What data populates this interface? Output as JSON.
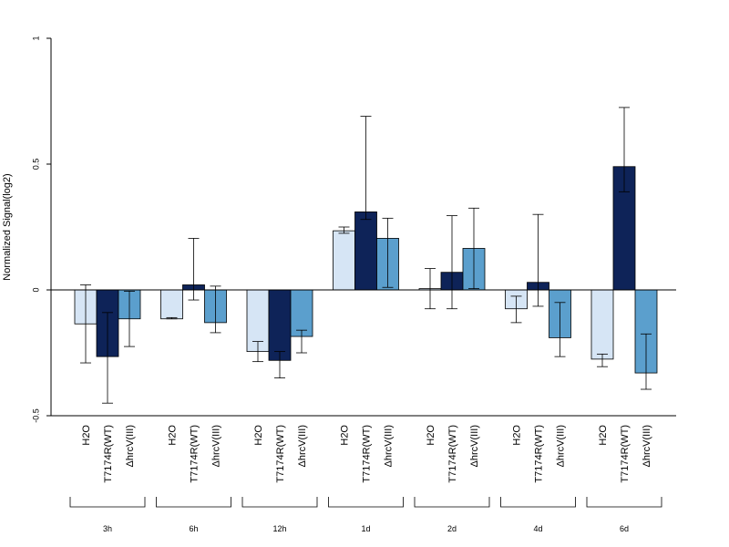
{
  "chart_data": {
    "type": "bar",
    "ylabel": "Normalized Signal(log2)",
    "ylim": [
      -0.5,
      1
    ],
    "yticks": [
      -0.5,
      0,
      0.5,
      1
    ],
    "ytick_labels": [
      "-0.5",
      "0",
      "0.5",
      "1"
    ],
    "groups": [
      "3h",
      "6h",
      "12h",
      "1d",
      "2d",
      "4d",
      "6d"
    ],
    "series": [
      {
        "name": "H2O",
        "color": "#d6e5f5",
        "values": [
          -0.135,
          -0.115,
          -0.245,
          0.235,
          0.005,
          -0.075,
          -0.275
        ],
        "err_low": [
          -0.29,
          -0.115,
          -0.285,
          0.225,
          -0.075,
          -0.13,
          -0.305
        ],
        "err_high": [
          0.02,
          -0.11,
          -0.205,
          0.25,
          0.085,
          -0.025,
          -0.255
        ]
      },
      {
        "name": "T7174R(WT)",
        "color": "#0e2358",
        "values": [
          -0.265,
          0.02,
          -0.28,
          0.31,
          0.07,
          0.03,
          0.49
        ],
        "err_low": [
          -0.45,
          -0.04,
          -0.35,
          0.28,
          -0.075,
          -0.065,
          0.39
        ],
        "err_high": [
          -0.09,
          0.205,
          -0.245,
          0.69,
          0.295,
          0.3,
          0.725
        ]
      },
      {
        "name": "ΔhrcV(III)",
        "color": "#5b9fcd",
        "values": [
          -0.115,
          -0.13,
          -0.185,
          0.205,
          0.165,
          -0.19,
          -0.33
        ],
        "err_low": [
          -0.225,
          -0.17,
          -0.25,
          0.01,
          0.005,
          -0.265,
          -0.395
        ],
        "err_high": [
          -0.005,
          0.015,
          -0.16,
          0.285,
          0.325,
          -0.05,
          -0.175
        ]
      }
    ],
    "grid": false,
    "legend": "none"
  }
}
